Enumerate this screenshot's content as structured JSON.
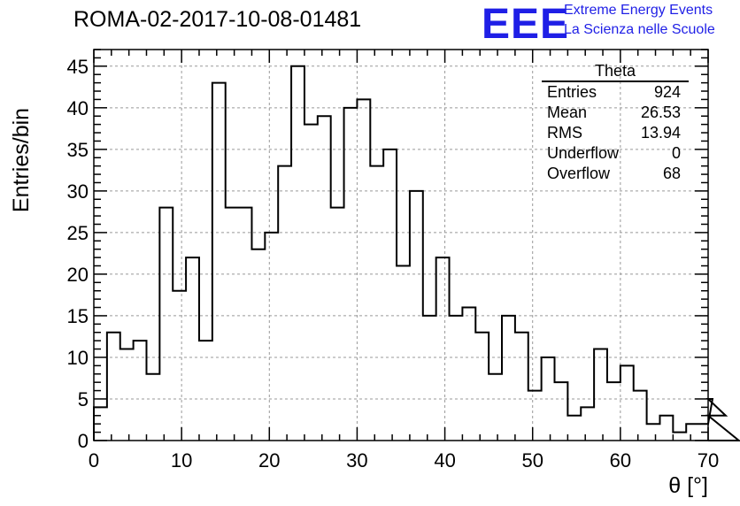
{
  "chart_data": {
    "type": "histogram",
    "title": "ROMA-02-2017-10-08-01481",
    "xlabel": "θ [°]",
    "ylabel": "Entries/bin",
    "xlim": [
      0,
      70
    ],
    "ylim": [
      0,
      47
    ],
    "x_ticks": [
      0,
      10,
      20,
      30,
      40,
      50,
      60,
      70
    ],
    "y_ticks": [
      0,
      5,
      10,
      15,
      20,
      25,
      30,
      35,
      40,
      45
    ],
    "grid": true,
    "bin_width": 1.5,
    "bin_edges_start": 0,
    "values": [
      4,
      13,
      11,
      12,
      8,
      28,
      18,
      22,
      12,
      43,
      28,
      28,
      23,
      25,
      33,
      45,
      38,
      39,
      28,
      40,
      41,
      33,
      35,
      21,
      30,
      15,
      22,
      15,
      16,
      13,
      8,
      15,
      13,
      6,
      10,
      7,
      3,
      4,
      11,
      7,
      9,
      6,
      2,
      3,
      1,
      2,
      2,
      5,
      3,
      0
    ]
  },
  "logo": {
    "mark": "EEE",
    "line1": "Extreme Energy Events",
    "line2": "La Scienza nelle Scuole",
    "color": "#1f1fe6"
  },
  "stats_box": {
    "title": "Theta",
    "rows": [
      {
        "label": "Entries",
        "value": "924"
      },
      {
        "label": "Mean",
        "value": "26.53"
      },
      {
        "label": "RMS",
        "value": "13.94"
      },
      {
        "label": "Underflow",
        "value": "0"
      },
      {
        "label": "Overflow",
        "value": "68"
      }
    ]
  }
}
